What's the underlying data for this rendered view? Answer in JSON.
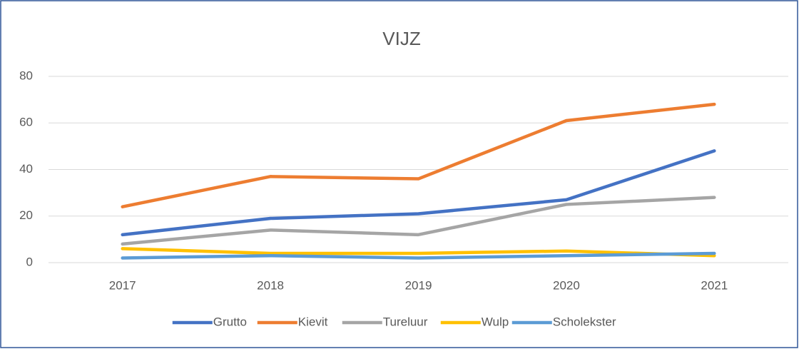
{
  "chart_data": {
    "type": "line",
    "title": "VIJZ",
    "categories": [
      "2017",
      "2018",
      "2019",
      "2020",
      "2021"
    ],
    "series": [
      {
        "name": "Grutto",
        "color": "#4472c4",
        "values": [
          12,
          19,
          21,
          27,
          48
        ]
      },
      {
        "name": "Kievit",
        "color": "#ed7d31",
        "values": [
          24,
          37,
          36,
          61,
          68
        ]
      },
      {
        "name": "Tureluur",
        "color": "#a5a5a5",
        "values": [
          8,
          14,
          12,
          25,
          28
        ]
      },
      {
        "name": "Wulp",
        "color": "#ffc000",
        "values": [
          6,
          4,
          4,
          5,
          3
        ]
      },
      {
        "name": "Scholekster",
        "color": "#5b9bd5",
        "values": [
          2,
          3,
          2,
          3,
          4
        ]
      }
    ],
    "ylim": [
      0,
      80
    ],
    "yticks": [
      0,
      20,
      40,
      60,
      80
    ],
    "grid": true,
    "legend": "bottom"
  }
}
